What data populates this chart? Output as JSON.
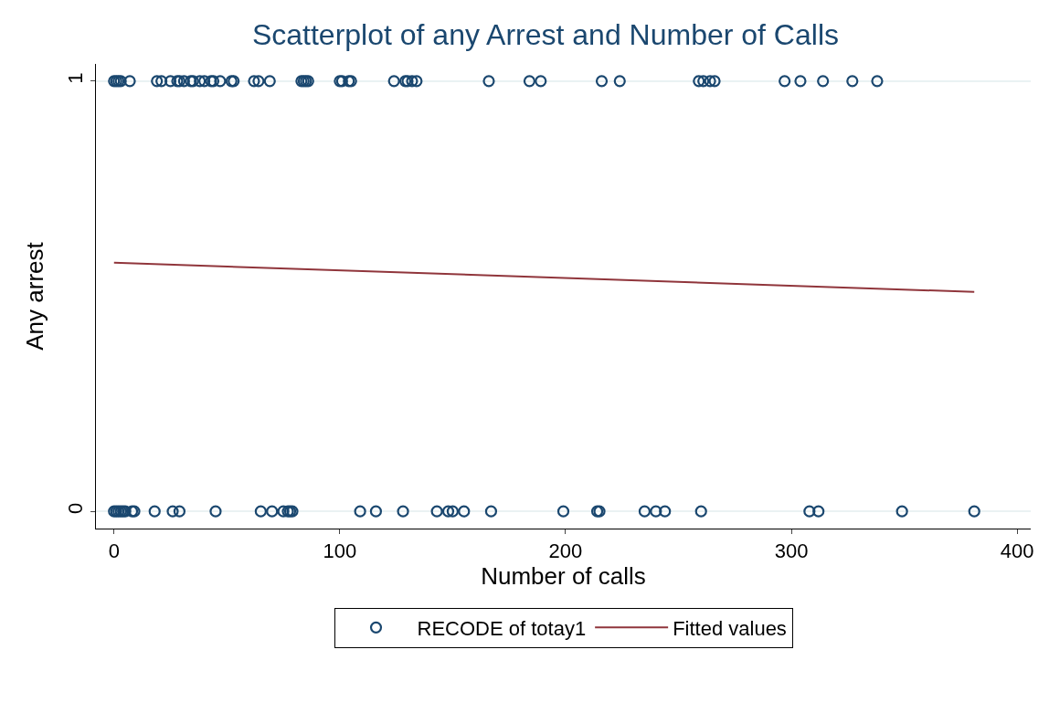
{
  "chart_data": {
    "type": "scatter",
    "title": "Scatterplot of any Arrest and Number of Calls",
    "xlabel": "Number of calls",
    "ylabel": "Any arrest",
    "xlim": [
      -8,
      406
    ],
    "xticks": [
      0,
      100,
      200,
      300,
      400
    ],
    "ylim": [
      -0.04,
      1.04
    ],
    "yticks": [
      0,
      1
    ],
    "grid": "y",
    "legend": "bottom",
    "series": [
      {
        "name": "RECODE of totay1",
        "color": "#1a476f",
        "marker": "circle",
        "x": [
          0,
          1,
          2,
          3,
          7,
          19,
          21,
          25,
          28,
          29,
          31,
          34,
          35,
          38,
          40,
          43,
          44,
          47,
          52,
          53,
          62,
          64,
          69,
          83,
          84,
          85,
          86,
          100,
          101,
          104,
          105,
          124,
          129,
          130,
          132,
          134,
          166,
          184,
          189,
          216,
          224,
          259,
          261,
          264,
          266,
          297,
          304,
          314,
          327,
          338,
          0,
          1,
          2,
          3,
          4,
          5,
          8,
          9,
          18,
          26,
          29,
          45,
          65,
          70,
          75,
          77,
          78,
          79,
          109,
          116,
          128,
          143,
          148,
          150,
          155,
          167,
          199,
          214,
          215,
          235,
          240,
          244,
          260,
          308,
          312,
          349,
          381
        ],
        "values": [
          1,
          1,
          1,
          1,
          1,
          1,
          1,
          1,
          1,
          1,
          1,
          1,
          1,
          1,
          1,
          1,
          1,
          1,
          1,
          1,
          1,
          1,
          1,
          1,
          1,
          1,
          1,
          1,
          1,
          1,
          1,
          1,
          1,
          1,
          1,
          1,
          1,
          1,
          1,
          1,
          1,
          1,
          1,
          1,
          1,
          1,
          1,
          1,
          1,
          1,
          0,
          0,
          0,
          0,
          0,
          0,
          0,
          0,
          0,
          0,
          0,
          0,
          0,
          0,
          0,
          0,
          0,
          0,
          0,
          0,
          0,
          0,
          0,
          0,
          0,
          0,
          0,
          0,
          0,
          0,
          0,
          0,
          0,
          0,
          0,
          0,
          0
        ]
      },
      {
        "name": "Fitted values",
        "color": "#90353b",
        "type": "line",
        "marker": "none",
        "x": [
          0,
          381
        ],
        "values": [
          0.578,
          0.51
        ]
      }
    ]
  }
}
